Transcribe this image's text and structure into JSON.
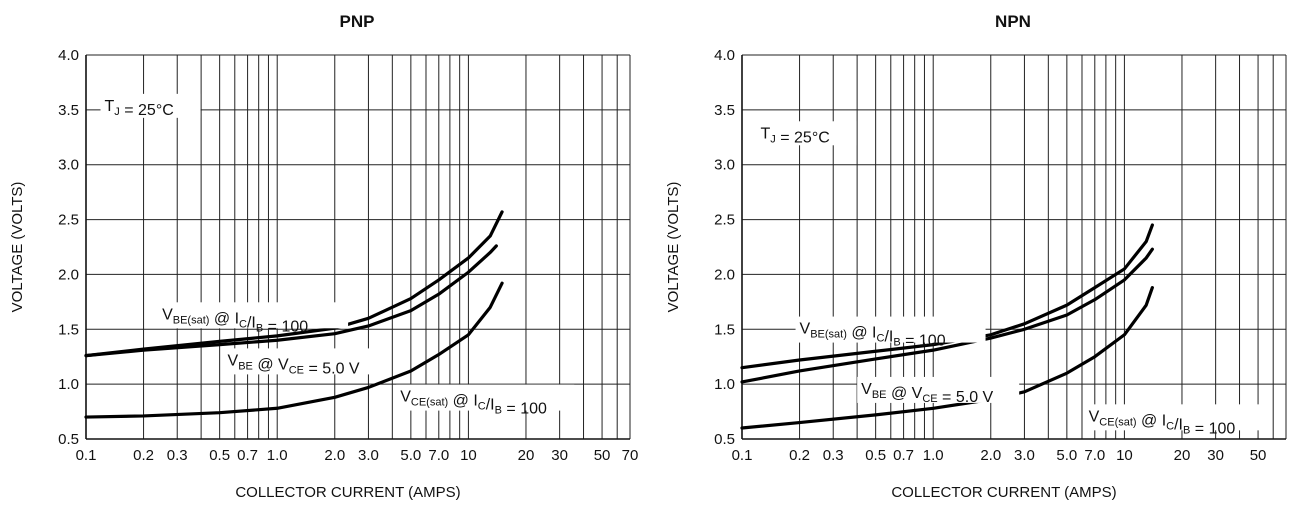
{
  "chart_data": [
    {
      "type": "line",
      "title": "PNP",
      "xlabel": "COLLECTOR CURRENT (AMPS)",
      "ylabel": "VOLTAGE (VOLTS)",
      "x_scale": "log",
      "xlim": [
        0.1,
        70
      ],
      "ylim": [
        0.5,
        4.0
      ],
      "x_tick_labels": [
        {
          "v": 0.1,
          "t": "0.1"
        },
        {
          "v": 0.2,
          "t": "0.2"
        },
        {
          "v": 0.3,
          "t": "0.3"
        },
        {
          "v": 0.5,
          "t": "0.5"
        },
        {
          "v": 0.7,
          "t": "0.7"
        },
        {
          "v": 1.0,
          "t": "1.0"
        },
        {
          "v": 2.0,
          "t": "2.0"
        },
        {
          "v": 3.0,
          "t": "3.0"
        },
        {
          "v": 5.0,
          "t": "5.0"
        },
        {
          "v": 7.0,
          "t": "7.0"
        },
        {
          "v": 10,
          "t": "10"
        },
        {
          "v": 20,
          "t": "20"
        },
        {
          "v": 30,
          "t": "30"
        },
        {
          "v": 50,
          "t": "50"
        },
        {
          "v": 70,
          "t": "70"
        }
      ],
      "y_tick_labels": [
        "0.5",
        "1.0",
        "1.5",
        "2.0",
        "2.5",
        "3.0",
        "3.5",
        "4.0"
      ],
      "grid": true,
      "annotations": {
        "temp": {
          "main": "T",
          "sub": "J",
          "tail": " = 25°C",
          "x": 0.125,
          "y": 3.5
        },
        "vbesat": {
          "p1": "V",
          "s1": "BE(sat)",
          "p2": " @ I",
          "s2": "C",
          "p3": "/I",
          "s3": "B",
          "p4": " = 100",
          "x": 0.25,
          "y": 1.6
        },
        "vbe": {
          "p1": "V",
          "s1": "BE",
          "p2": " @ V",
          "s2": "CE",
          "p3": " = 5.0 V",
          "x": 0.55,
          "y": 1.18
        },
        "vcesat": {
          "p1": "V",
          "s1": "CE(sat)",
          "p2": " @ I",
          "s2": "C",
          "p3": "/I",
          "s3": "B",
          "p4": " = 100",
          "x": 4.4,
          "y": 0.85
        }
      },
      "series": [
        {
          "key": "vbesat",
          "x": [
            0.1,
            0.2,
            0.5,
            1.0,
            2.0,
            3.0,
            5.0,
            7.0,
            10,
            13,
            15
          ],
          "y": [
            1.26,
            1.32,
            1.39,
            1.44,
            1.51,
            1.6,
            1.78,
            1.95,
            2.15,
            2.35,
            2.57
          ]
        },
        {
          "key": "vbe",
          "x": [
            0.1,
            0.2,
            0.5,
            1.0,
            2.0,
            3.0,
            5.0,
            7.0,
            10,
            13,
            14
          ],
          "y": [
            1.26,
            1.31,
            1.36,
            1.4,
            1.46,
            1.53,
            1.67,
            1.82,
            2.02,
            2.2,
            2.26
          ]
        },
        {
          "key": "vcesat",
          "x": [
            0.1,
            0.2,
            0.5,
            1.0,
            2.0,
            3.0,
            5.0,
            7.0,
            10,
            13,
            15
          ],
          "y": [
            0.7,
            0.71,
            0.74,
            0.78,
            0.88,
            0.97,
            1.12,
            1.27,
            1.45,
            1.7,
            1.92
          ]
        }
      ]
    },
    {
      "type": "line",
      "title": "NPN",
      "xlabel": "COLLECTOR CURRENT (AMPS)",
      "ylabel": "VOLTAGE (VOLTS)",
      "x_scale": "log",
      "xlim": [
        0.1,
        70
      ],
      "ylim": [
        0.5,
        4.0
      ],
      "x_tick_labels": [
        {
          "v": 0.1,
          "t": "0.1"
        },
        {
          "v": 0.2,
          "t": "0.2"
        },
        {
          "v": 0.3,
          "t": "0.3"
        },
        {
          "v": 0.5,
          "t": "0.5"
        },
        {
          "v": 0.7,
          "t": "0.7"
        },
        {
          "v": 1.0,
          "t": "1.0"
        },
        {
          "v": 2.0,
          "t": "2.0"
        },
        {
          "v": 3.0,
          "t": "3.0"
        },
        {
          "v": 5.0,
          "t": "5.0"
        },
        {
          "v": 7.0,
          "t": "7.0"
        },
        {
          "v": 10,
          "t": "10"
        },
        {
          "v": 20,
          "t": "20"
        },
        {
          "v": 30,
          "t": "30"
        },
        {
          "v": 50,
          "t": "50"
        }
      ],
      "y_tick_labels": [
        "0.5",
        "1.0",
        "1.5",
        "2.0",
        "2.5",
        "3.0",
        "3.5",
        "4.0"
      ],
      "grid": true,
      "annotations": {
        "temp": {
          "main": "T",
          "sub": "J",
          "tail": " = 25°C",
          "x": 0.125,
          "y": 3.25
        },
        "vbesat": {
          "p1": "V",
          "s1": "BE(sat)",
          "p2": " @ I",
          "s2": "C",
          "p3": "/I",
          "s3": "B",
          "p4": " = 100",
          "x": 0.2,
          "y": 1.47
        },
        "vbe": {
          "p1": "V",
          "s1": "BE",
          "p2": " @ V",
          "s2": "CE",
          "p3": " = 5.0 V",
          "x": 0.42,
          "y": 0.92
        },
        "vcesat": {
          "p1": "V",
          "s1": "CE(sat)",
          "p2": " @ I",
          "s2": "C",
          "p3": "/I",
          "s3": "B",
          "p4": " = 100",
          "x": 6.5,
          "y": 0.67
        }
      },
      "series": [
        {
          "key": "vbesat",
          "x": [
            0.1,
            0.2,
            0.5,
            1.0,
            2.0,
            3.0,
            5.0,
            7.0,
            10,
            13,
            14
          ],
          "y": [
            1.15,
            1.22,
            1.3,
            1.36,
            1.45,
            1.55,
            1.72,
            1.88,
            2.05,
            2.3,
            2.45
          ]
        },
        {
          "key": "vbe",
          "x": [
            0.1,
            0.2,
            0.5,
            1.0,
            2.0,
            3.0,
            5.0,
            7.0,
            10,
            13,
            14
          ],
          "y": [
            1.02,
            1.12,
            1.23,
            1.31,
            1.42,
            1.5,
            1.63,
            1.77,
            1.95,
            2.15,
            2.23
          ]
        },
        {
          "key": "vcesat",
          "x": [
            0.1,
            0.2,
            0.5,
            1.0,
            2.0,
            3.0,
            5.0,
            7.0,
            10,
            13,
            14
          ],
          "y": [
            0.6,
            0.65,
            0.72,
            0.78,
            0.86,
            0.93,
            1.1,
            1.25,
            1.45,
            1.72,
            1.88
          ]
        }
      ]
    }
  ]
}
